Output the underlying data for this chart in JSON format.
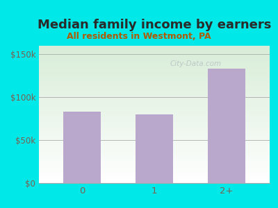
{
  "title": "Median family income by earners",
  "subtitle": "All residents in Westmont, PA",
  "categories": [
    "0",
    "1",
    "2+"
  ],
  "values": [
    83000,
    80000,
    133000
  ],
  "bar_color": "#b9a8cc",
  "background_color": "#00e8e8",
  "plot_bg_top": "#d8edd8",
  "plot_bg_bottom": "#ffffff",
  "yticks": [
    0,
    50000,
    100000,
    150000
  ],
  "ytick_labels": [
    "$0",
    "$50k",
    "$100k",
    "$150k"
  ],
  "ylim": [
    0,
    160000
  ],
  "title_color": "#2a2a2a",
  "subtitle_color": "#b05a00",
  "tick_color": "#7a6050",
  "title_fontsize": 13,
  "subtitle_fontsize": 9,
  "watermark": "City-Data.com"
}
